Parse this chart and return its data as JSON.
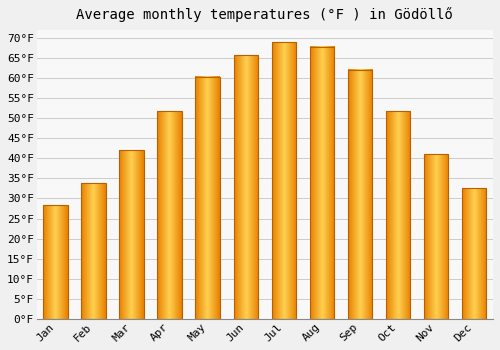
{
  "title": "Average monthly temperatures (°F ) in Gödöllő",
  "months": [
    "Jan",
    "Feb",
    "Mar",
    "Apr",
    "May",
    "Jun",
    "Jul",
    "Aug",
    "Sep",
    "Oct",
    "Nov",
    "Dec"
  ],
  "values": [
    28.4,
    33.8,
    42.1,
    51.8,
    60.3,
    65.7,
    68.9,
    67.8,
    62.1,
    51.8,
    41.0,
    32.5
  ],
  "bar_color_center": "#FFD050",
  "bar_color_edge": "#E88000",
  "bar_outline_color": "#B86000",
  "background_color": "#f0f0f0",
  "plot_bg_color": "#f8f8f8",
  "grid_color": "#cccccc",
  "ylim": [
    0,
    72
  ],
  "yticks": [
    0,
    5,
    10,
    15,
    20,
    25,
    30,
    35,
    40,
    45,
    50,
    55,
    60,
    65,
    70
  ],
  "title_fontsize": 10,
  "tick_fontsize": 8,
  "figsize": [
    5.0,
    3.5
  ],
  "dpi": 100
}
